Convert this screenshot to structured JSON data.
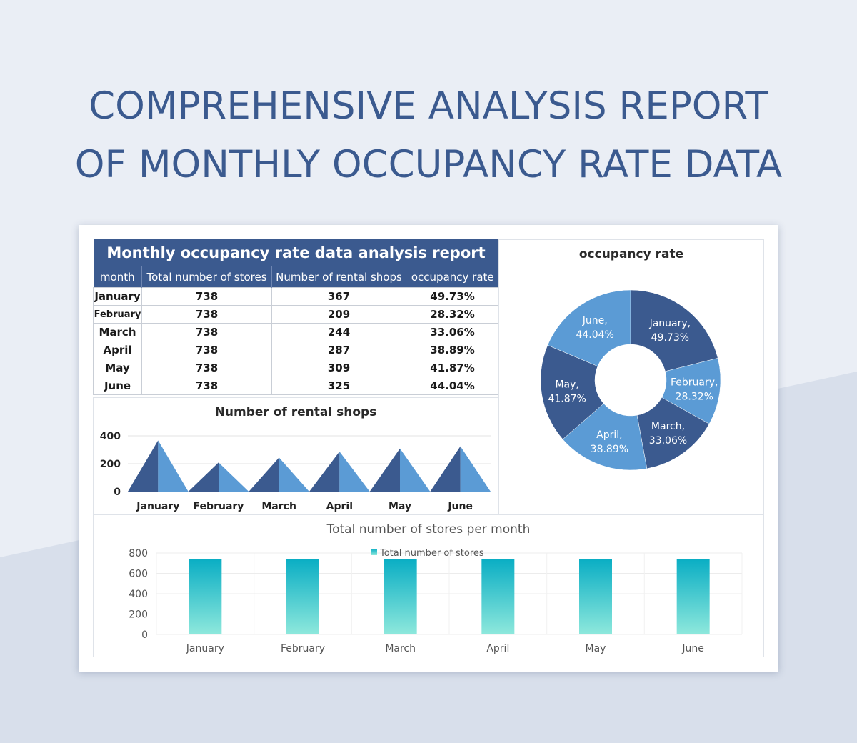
{
  "page": {
    "title_line1": "COMPREHENSIVE ANALYSIS REPORT",
    "title_line2": "OF MONTHLY OCCUPANCY RATE DATA"
  },
  "table": {
    "caption": "Monthly occupancy rate data analysis report",
    "headers": [
      "month",
      "Total number of stores",
      "Number of rental shops",
      "occupancy rate"
    ],
    "rows": [
      [
        "January",
        "738",
        "367",
        "49.73%"
      ],
      [
        "February",
        "738",
        "209",
        "28.32%"
      ],
      [
        "March",
        "738",
        "244",
        "33.06%"
      ],
      [
        "April",
        "738",
        "287",
        "38.89%"
      ],
      [
        "May",
        "738",
        "309",
        "41.87%"
      ],
      [
        "June",
        "738",
        "325",
        "44.04%"
      ]
    ]
  },
  "colors": {
    "navy": "#3b5a8f",
    "blue": "#5b9bd5",
    "teal_top": "#0aaec4",
    "teal_bottom": "#8ee8dc"
  },
  "chart_data": [
    {
      "type": "pie",
      "variant": "donut",
      "title": "occupancy rate",
      "categories": [
        "January",
        "February",
        "March",
        "April",
        "May",
        "June"
      ],
      "values": [
        49.73,
        28.32,
        33.06,
        38.89,
        41.87,
        44.04
      ],
      "labels": [
        "49.73%",
        "28.32%",
        "33.06%",
        "38.89%",
        "41.87%",
        "44.04%"
      ],
      "slice_colors": [
        "#3b5a8f",
        "#5b9bd5",
        "#3b5a8f",
        "#5b9bd5",
        "#3b5a8f",
        "#5b9bd5"
      ]
    },
    {
      "type": "bar",
      "variant": "pyramid",
      "title": "Number of rental shops",
      "categories": [
        "January",
        "February",
        "March",
        "April",
        "May",
        "June"
      ],
      "values": [
        367,
        209,
        244,
        287,
        309,
        325
      ],
      "yticks": [
        0,
        200,
        400
      ],
      "ylim": [
        0,
        400
      ],
      "grid": true
    },
    {
      "type": "bar",
      "title": "Total number of stores per month",
      "categories": [
        "January",
        "February",
        "March",
        "April",
        "May",
        "June"
      ],
      "series": [
        {
          "name": "Total number of stores",
          "values": [
            738,
            738,
            738,
            738,
            738,
            738
          ]
        }
      ],
      "yticks": [
        0,
        200,
        400,
        600,
        800
      ],
      "ylim": [
        0,
        800
      ],
      "grid": true,
      "legend": "top"
    }
  ]
}
